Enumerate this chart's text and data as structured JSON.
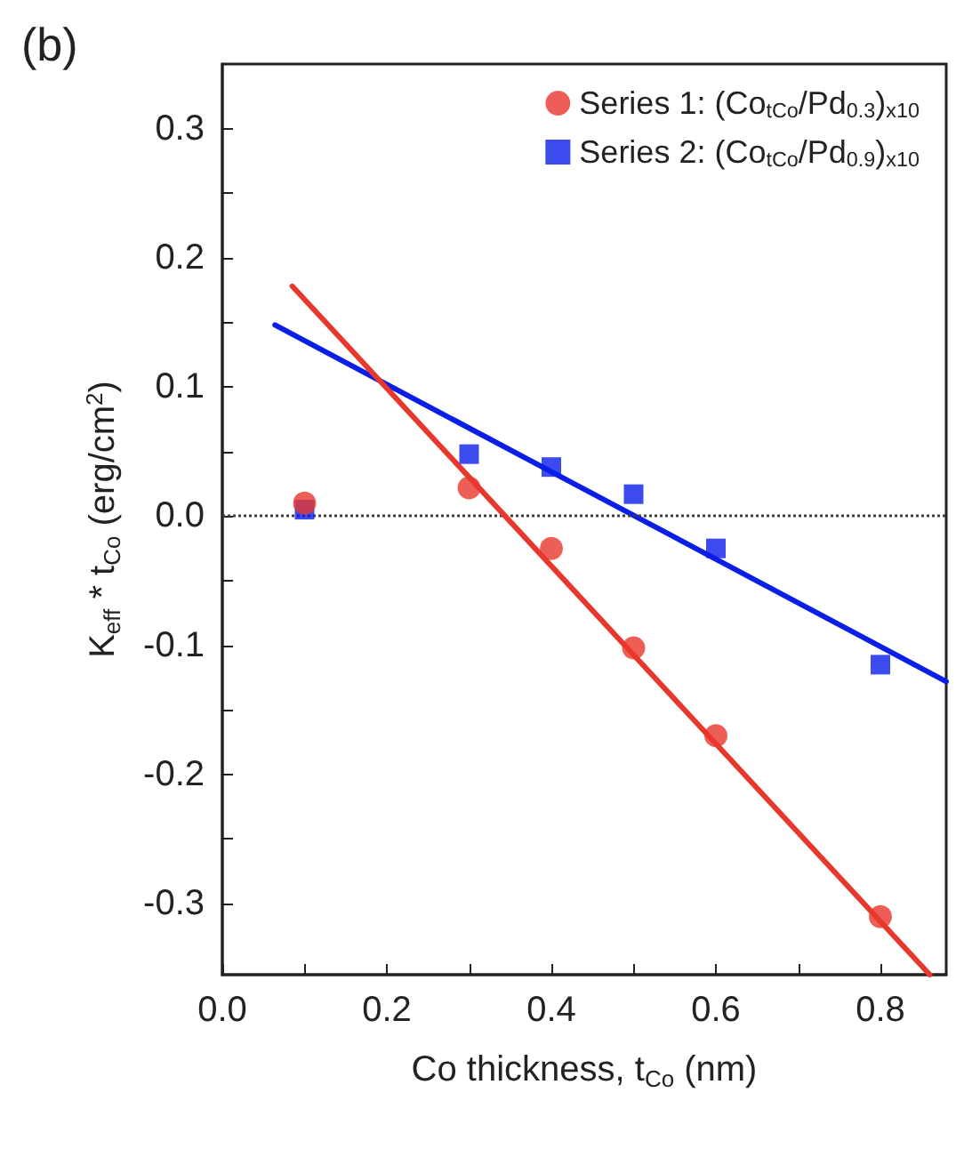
{
  "chart_data": {
    "type": "scatter",
    "xlabel": "Co thickness, t$_{Co}$ (nm)",
    "ylabel": "K$_{eff}$ * t$_{Co}$ (erg/cm$^{2}$)",
    "annotations": [
      "(b)"
    ],
    "xlim": [
      0,
      0.88
    ],
    "xticks": [
      {
        "value": 0,
        "label": "0.0"
      },
      {
        "value": 0.1,
        "label": null
      },
      0.2,
      {
        "value": 0.3,
        "label": null
      },
      0.4,
      {
        "value": 0.5,
        "label": null
      },
      0.6,
      {
        "value": 0.7,
        "label": null
      },
      0.8
    ],
    "ylim": [
      -0.355,
      0.35
    ],
    "yticks": [
      -0.3,
      {
        "value": -0.25,
        "label": null
      },
      -0.2,
      {
        "value": -0.15,
        "label": null
      },
      -0.1,
      {
        "value": -0.05,
        "label": null
      },
      {
        "value": 0,
        "label": "0.0"
      },
      {
        "value": 0.05,
        "label": null
      },
      0.1,
      {
        "value": 0.15,
        "label": null
      },
      0.2,
      {
        "value": 0.25,
        "label": null
      },
      0.3
    ],
    "grid": false,
    "legend": "top right",
    "ref_lines": [
      {
        "axis": "y",
        "value": 0,
        "color": "#404040",
        "line_style": "dotted"
      }
    ],
    "series": [
      {
        "name": "Series 1: (Co$_{tCo}$/Pd$_{0.3}$)$_{x10}$",
        "color": "#e8372c",
        "marker": "circle",
        "x": [
          0.1,
          0.3,
          0.4,
          0.5,
          0.6,
          0.8
        ],
        "values": [
          0.01,
          0.022,
          -0.025,
          -0.102,
          -0.17,
          -0.31
        ]
      },
      {
        "name": "Series 2: (Co$_{tCo}$/Pd$_{0.9}$)$_{x10}$",
        "color": "#0a1ee8",
        "marker": "square",
        "x": [
          0.1,
          0.3,
          0.4,
          0.5,
          0.6,
          0.8
        ],
        "values": [
          0.005,
          0.048,
          0.038,
          0.017,
          -0.025,
          -0.115
        ]
      },
      {
        "type": "line",
        "color": "#e8372c",
        "marker": "none",
        "line_style": "solid",
        "x": [
          0.085,
          0.86
        ],
        "values": [
          0.178,
          -0.355
        ]
      },
      {
        "type": "line",
        "color": "#0a1ee8",
        "marker": "none",
        "line_style": "solid",
        "x": [
          0.064,
          0.88
        ],
        "values": [
          0.148,
          -0.128
        ]
      }
    ]
  }
}
